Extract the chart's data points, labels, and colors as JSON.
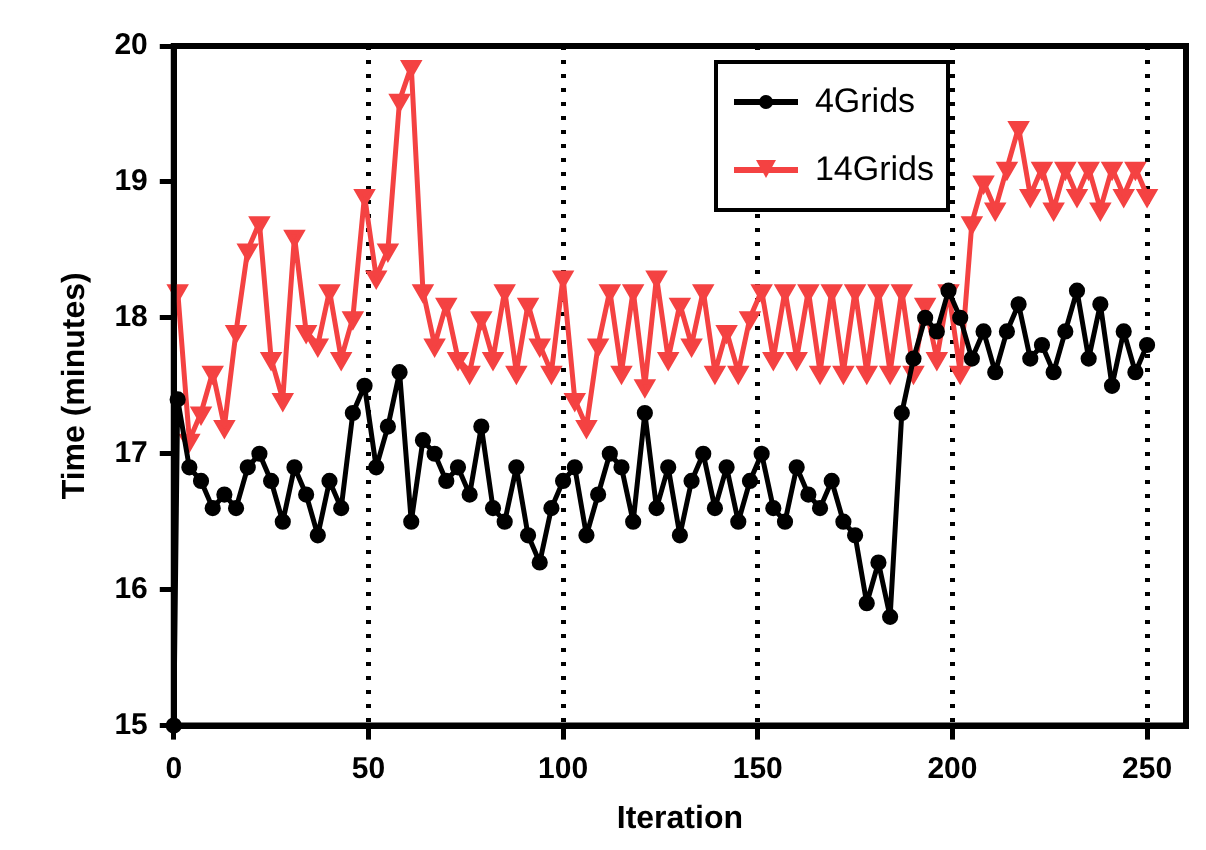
{
  "chart_data": {
    "type": "line",
    "xlabel": "Iteration",
    "ylabel": "Time (minutes)",
    "xlim": [
      0,
      260
    ],
    "xticks": [
      0,
      50,
      100,
      150,
      200,
      250
    ],
    "ylim": [
      15,
      20
    ],
    "yticks": [
      15,
      16,
      17,
      18,
      19,
      20
    ],
    "grid": "x",
    "legend": "top right",
    "line_style": "solid",
    "series": [
      {
        "name": "4Grids",
        "color": "#000000",
        "marker": "circle",
        "x": [
          0,
          1,
          4,
          7,
          10,
          13,
          16,
          19,
          22,
          25,
          28,
          31,
          34,
          37,
          40,
          43,
          46,
          49,
          52,
          55,
          58,
          61,
          64,
          67,
          70,
          73,
          76,
          79,
          82,
          85,
          88,
          91,
          94,
          97,
          100,
          103,
          106,
          109,
          112,
          115,
          118,
          121,
          124,
          127,
          130,
          133,
          136,
          139,
          142,
          145,
          148,
          151,
          154,
          157,
          160,
          163,
          166,
          169,
          172,
          175,
          178,
          181,
          184,
          187,
          190,
          193,
          196,
          199,
          202,
          205,
          208,
          211,
          214,
          217,
          220,
          223,
          226,
          229,
          232,
          235,
          238,
          241,
          244,
          247,
          250
        ],
        "values": [
          15,
          17.4,
          16.9,
          16.8,
          16.6,
          16.7,
          16.6,
          16.9,
          17.0,
          16.8,
          16.5,
          16.9,
          16.7,
          16.4,
          16.8,
          16.6,
          17.3,
          17.5,
          16.9,
          17.2,
          17.6,
          16.5,
          17.1,
          17.0,
          16.8,
          16.9,
          16.7,
          17.2,
          16.6,
          16.5,
          16.9,
          16.4,
          16.2,
          16.6,
          16.8,
          16.9,
          16.4,
          16.7,
          17.0,
          16.9,
          16.5,
          17.3,
          16.6,
          16.9,
          16.4,
          16.8,
          17.0,
          16.6,
          16.9,
          16.5,
          16.8,
          17.0,
          16.6,
          16.5,
          16.9,
          16.7,
          16.6,
          16.8,
          16.5,
          16.4,
          15.9,
          16.2,
          15.8,
          17.3,
          17.7,
          18.0,
          17.9,
          18.2,
          18.0,
          17.7,
          17.9,
          17.6,
          17.9,
          18.1,
          17.7,
          17.8,
          17.6,
          17.9,
          18.2,
          17.7,
          18.1,
          17.5,
          17.9,
          17.6,
          17.8
        ]
      },
      {
        "name": "14Grids",
        "color": "#f44242",
        "marker": "triangle",
        "x": [
          1,
          4,
          7,
          10,
          13,
          16,
          19,
          22,
          25,
          28,
          31,
          34,
          37,
          40,
          43,
          46,
          49,
          52,
          55,
          58,
          61,
          64,
          67,
          70,
          73,
          76,
          79,
          82,
          85,
          88,
          91,
          94,
          97,
          100,
          103,
          106,
          109,
          112,
          115,
          118,
          121,
          124,
          127,
          130,
          133,
          136,
          139,
          142,
          145,
          148,
          151,
          154,
          157,
          160,
          163,
          166,
          169,
          172,
          175,
          178,
          181,
          184,
          187,
          190,
          193,
          196,
          199,
          202,
          205,
          208,
          211,
          214,
          217,
          220,
          223,
          226,
          229,
          232,
          235,
          238,
          241,
          244,
          247,
          250
        ],
        "values": [
          18.2,
          17.1,
          17.3,
          17.6,
          17.2,
          17.9,
          18.5,
          18.7,
          17.7,
          17.4,
          18.6,
          17.9,
          17.8,
          18.2,
          17.7,
          18.0,
          18.9,
          18.3,
          18.5,
          19.6,
          19.85,
          18.2,
          17.8,
          18.1,
          17.7,
          17.6,
          18.0,
          17.7,
          18.2,
          17.6,
          18.1,
          17.8,
          17.6,
          18.3,
          17.4,
          17.2,
          17.8,
          18.2,
          17.6,
          18.2,
          17.5,
          18.3,
          17.7,
          18.1,
          17.8,
          18.2,
          17.6,
          17.9,
          17.6,
          18.0,
          18.2,
          17.7,
          18.2,
          17.7,
          18.2,
          17.6,
          18.2,
          17.6,
          18.2,
          17.6,
          18.2,
          17.6,
          18.2,
          17.6,
          18.1,
          17.7,
          18.2,
          17.6,
          18.7,
          19.0,
          18.8,
          19.1,
          19.4,
          18.9,
          19.1,
          18.8,
          19.1,
          18.9,
          19.1,
          18.8,
          19.1,
          18.9,
          19.1,
          18.9
        ]
      }
    ]
  }
}
